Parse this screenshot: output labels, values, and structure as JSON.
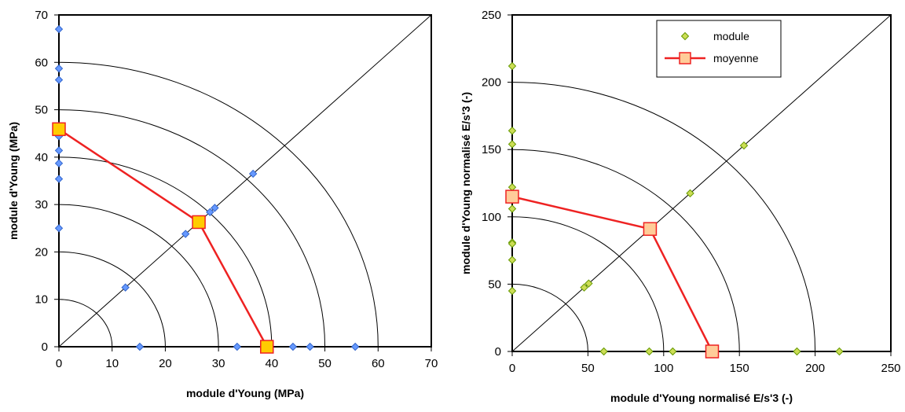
{
  "chart_data": [
    {
      "type": "scatter",
      "xlabel": "module d'Young (MPa)",
      "ylabel": "module d'Young (MPa)",
      "xlim": [
        0,
        70
      ],
      "ylim": [
        0,
        70
      ],
      "xticks": [
        0,
        10,
        20,
        30,
        40,
        50,
        60,
        70
      ],
      "yticks": [
        0,
        10,
        20,
        30,
        40,
        50,
        60,
        70
      ],
      "grid": false,
      "legend": null,
      "arcs": [
        10,
        20,
        30,
        40,
        50,
        60
      ],
      "diagonal": true,
      "series": [
        {
          "marker": "diamond",
          "color": "#6699ff",
          "edge": "#3366cc",
          "points": [
            [
              0,
              67
            ],
            [
              0,
              58.7
            ],
            [
              0,
              56.3
            ],
            [
              0,
              46.6
            ],
            [
              0,
              45.4
            ],
            [
              0,
              44.4
            ],
            [
              0,
              41.4
            ],
            [
              0,
              38.7
            ],
            [
              0,
              35.4
            ],
            [
              0,
              25
            ],
            [
              12.5,
              12.5
            ],
            [
              23.8,
              23.8
            ],
            [
              28.4,
              28.4
            ],
            [
              29.3,
              29.3
            ],
            [
              36.5,
              36.5
            ],
            [
              15.2,
              0
            ],
            [
              33.5,
              0
            ],
            [
              39.3,
              0
            ],
            [
              44,
              0
            ],
            [
              47.2,
              0
            ],
            [
              55.7,
              0
            ]
          ]
        },
        {
          "marker": "square",
          "color": "#ffcc00",
          "edge": "#ee2222",
          "line": "#ee2222",
          "points": [
            [
              0,
              45.9
            ],
            [
              26.3,
              26.3
            ],
            [
              39.1,
              0
            ]
          ]
        }
      ]
    },
    {
      "type": "scatter",
      "xlabel": "module d'Young normalisé E/s'3 (-)",
      "ylabel": "module d'Young  normalisé E/s'3 (-)",
      "xlim": [
        0,
        250
      ],
      "ylim": [
        0,
        250
      ],
      "xticks": [
        0,
        50,
        100,
        150,
        200,
        250
      ],
      "yticks": [
        0,
        50,
        100,
        150,
        200,
        250
      ],
      "grid": false,
      "legend": "top-center",
      "arcs": [
        50,
        100,
        150,
        200
      ],
      "diagonal": true,
      "series": [
        {
          "name": "module",
          "marker": "diamond",
          "color": "#ccdd55",
          "edge": "#669900",
          "points": [
            [
              0,
              212
            ],
            [
              0,
              164
            ],
            [
              0,
              154
            ],
            [
              0,
              122
            ],
            [
              0,
              106
            ],
            [
              0,
              81
            ],
            [
              0,
              80
            ],
            [
              0,
              68
            ],
            [
              0,
              45
            ],
            [
              47.5,
              47.5
            ],
            [
              50.5,
              50.5
            ],
            [
              117.5,
              117.5
            ],
            [
              153,
              153
            ],
            [
              60.5,
              0
            ],
            [
              90.5,
              0
            ],
            [
              106,
              0
            ],
            [
              188,
              0
            ],
            [
              216,
              0
            ]
          ]
        },
        {
          "name": "moyenne",
          "marker": "square",
          "color": "#ffcc99",
          "edge": "#ee2222",
          "line": "#ee2222",
          "points": [
            [
              0,
              115
            ],
            [
              91,
              91
            ],
            [
              132,
              0
            ]
          ]
        }
      ]
    }
  ]
}
